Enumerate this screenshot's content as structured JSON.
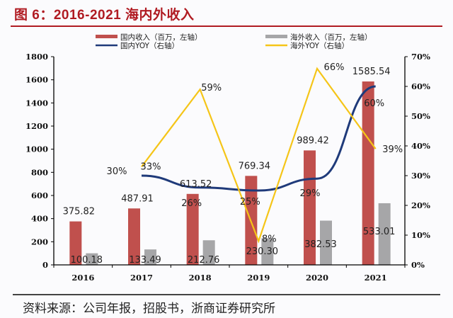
{
  "title": "图 6：2016-2021 海内外收入",
  "source": "资料来源：公司年报，招股书，浙商证券研究所",
  "colors": {
    "domestic_bar": "#c0504d",
    "overseas_bar": "#a6a6a8",
    "domestic_yoy": "#1f3a7a",
    "overseas_yoy": "#f5c518",
    "title": "#b01b22"
  },
  "chart_data": {
    "type": "bar",
    "title": "2016-2021 海内外收入",
    "categories": [
      "2016",
      "2017",
      "2018",
      "2019",
      "2020",
      "2021"
    ],
    "series": [
      {
        "name": "国内收入（百万，左轴）",
        "type": "bar",
        "axis": "left",
        "values": [
          375.82,
          487.91,
          613.52,
          769.34,
          989.42,
          1585.54
        ],
        "labels": [
          "375.82",
          "487.91",
          "613.52",
          "769.34",
          "989.42",
          "1585.54"
        ]
      },
      {
        "name": "海外收入（百万，左轴）",
        "type": "bar",
        "axis": "left",
        "values": [
          100.18,
          133.49,
          212.76,
          230.3,
          382.53,
          533.01
        ],
        "labels": [
          "100.18",
          "133.49",
          "212.76",
          "230.30",
          "382.53",
          "533.01"
        ]
      },
      {
        "name": "国内YOY（右轴）",
        "type": "line",
        "axis": "right",
        "values": [
          null,
          30,
          26,
          25,
          29,
          60
        ],
        "labels": [
          "",
          "30%",
          "26%",
          "25%",
          "29%",
          "60%"
        ]
      },
      {
        "name": "海外YOY（右轴）",
        "type": "line",
        "axis": "right",
        "values": [
          null,
          33,
          59,
          8,
          66,
          39
        ],
        "labels": [
          "",
          "33%",
          "59%",
          "8%",
          "66%",
          "39%"
        ]
      }
    ],
    "left_axis": {
      "ylim": [
        0,
        1800
      ],
      "ticks": [
        "0",
        "200",
        "400",
        "600",
        "800",
        "1000",
        "1200",
        "1400",
        "1600",
        "1800"
      ]
    },
    "right_axis": {
      "ylim": [
        0,
        70
      ],
      "ticks": [
        "0%",
        "10%",
        "20%",
        "30%",
        "40%",
        "50%",
        "60%",
        "70%"
      ]
    },
    "legend_position": "top",
    "grid": false
  }
}
